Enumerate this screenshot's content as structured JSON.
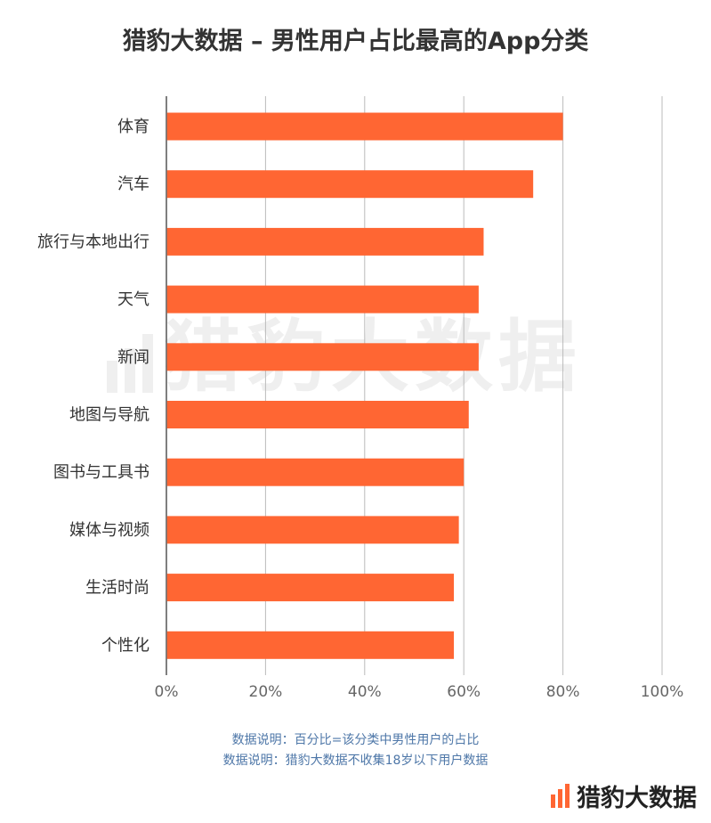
{
  "chart_data": {
    "type": "bar",
    "orientation": "horizontal",
    "title": "猎豹大数据 – 男性用户占比最高的App分类",
    "categories": [
      "体育",
      "汽车",
      "旅行与本地出行",
      "天气",
      "新闻",
      "地图与导航",
      "图书与工具书",
      "媒体与视频",
      "生活时尚",
      "个性化"
    ],
    "values": [
      80,
      74,
      64,
      63,
      63,
      61,
      60,
      59,
      58,
      58
    ],
    "unit": "%",
    "xlim": [
      0,
      100
    ],
    "xticks": [
      0,
      20,
      40,
      60,
      80,
      100
    ],
    "xtick_labels": [
      "0%",
      "20%",
      "40%",
      "60%",
      "80%",
      "100%"
    ],
    "grid": "vertical",
    "bar_color": "#ff6633",
    "xlabel": "",
    "ylabel": ""
  },
  "notes": {
    "line1": "数据说明：百分比=该分类中男性用户的占比",
    "line2": "数据说明：猎豹大数据不收集18岁以下用户数据"
  },
  "watermark": "猎豹大数据",
  "footer": {
    "logo_icon": "bar-logo-icon",
    "brand_text": "猎豹大数据",
    "logo_color": "#ff6633"
  }
}
